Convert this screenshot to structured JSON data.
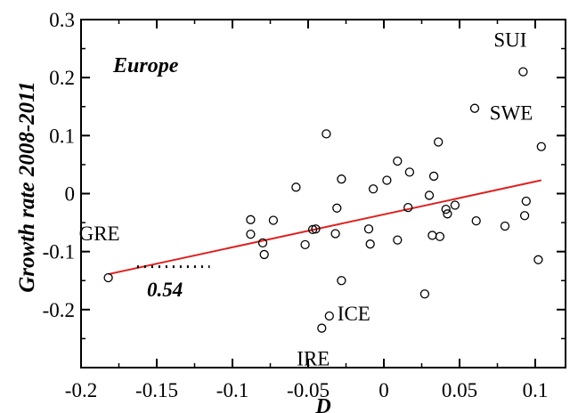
{
  "chart_data": {
    "type": "scatter",
    "title": "Europe",
    "xlabel": "D",
    "ylabel": "Growth rate 2008-2011",
    "xlim": [
      -0.2,
      0.12
    ],
    "ylim": [
      -0.3,
      0.3
    ],
    "x_ticks": [
      -0.2,
      -0.15,
      -0.1,
      -0.05,
      0,
      0.05,
      0.1
    ],
    "x_tick_labels": [
      "-0.2",
      "-0.15",
      "-0.1",
      "-0.05",
      "0",
      "0.05",
      "0.1"
    ],
    "y_ticks": [
      -0.2,
      -0.1,
      0,
      0.1,
      0.2,
      0.3
    ],
    "y_tick_labels": [
      "-0.2",
      "-0.1",
      "0",
      "0.1",
      "0.2",
      "0.3"
    ],
    "grid": false,
    "points": [
      {
        "x": -0.182,
        "y": -0.145
      },
      {
        "x": -0.088,
        "y": -0.045
      },
      {
        "x": -0.088,
        "y": -0.07
      },
      {
        "x": -0.08,
        "y": -0.085
      },
      {
        "x": -0.079,
        "y": -0.105
      },
      {
        "x": -0.073,
        "y": -0.046
      },
      {
        "x": -0.058,
        "y": 0.011
      },
      {
        "x": -0.052,
        "y": -0.088
      },
      {
        "x": -0.047,
        "y": -0.062
      },
      {
        "x": -0.045,
        "y": -0.061
      },
      {
        "x": -0.041,
        "y": -0.232
      },
      {
        "x": -0.038,
        "y": 0.103
      },
      {
        "x": -0.036,
        "y": -0.211
      },
      {
        "x": -0.032,
        "y": -0.069
      },
      {
        "x": -0.031,
        "y": -0.025
      },
      {
        "x": -0.028,
        "y": 0.025
      },
      {
        "x": -0.028,
        "y": -0.15
      },
      {
        "x": -0.01,
        "y": -0.061
      },
      {
        "x": -0.009,
        "y": -0.087
      },
      {
        "x": -0.007,
        "y": 0.008
      },
      {
        "x": 0.002,
        "y": 0.023
      },
      {
        "x": 0.009,
        "y": 0.056
      },
      {
        "x": 0.009,
        "y": -0.08
      },
      {
        "x": 0.016,
        "y": -0.024
      },
      {
        "x": 0.017,
        "y": 0.037
      },
      {
        "x": 0.027,
        "y": -0.173
      },
      {
        "x": 0.03,
        "y": -0.003
      },
      {
        "x": 0.032,
        "y": -0.072
      },
      {
        "x": 0.033,
        "y": 0.03
      },
      {
        "x": 0.036,
        "y": 0.089
      },
      {
        "x": 0.037,
        "y": -0.074
      },
      {
        "x": 0.041,
        "y": -0.027
      },
      {
        "x": 0.042,
        "y": -0.035
      },
      {
        "x": 0.047,
        "y": -0.02
      },
      {
        "x": 0.06,
        "y": 0.147
      },
      {
        "x": 0.061,
        "y": -0.047
      },
      {
        "x": 0.08,
        "y": -0.056
      },
      {
        "x": 0.092,
        "y": 0.21
      },
      {
        "x": 0.093,
        "y": -0.038
      },
      {
        "x": 0.094,
        "y": -0.013
      },
      {
        "x": 0.102,
        "y": -0.114
      },
      {
        "x": 0.104,
        "y": 0.081
      }
    ],
    "fit_line": {
      "x": [
        -0.182,
        0.104
      ],
      "y": [
        -0.139,
        0.023
      ],
      "color": "#dd2222"
    },
    "point_labels": [
      {
        "text": "GRE",
        "x": -0.182,
        "y": -0.145
      },
      {
        "text": "ICE",
        "x": -0.036,
        "y": -0.211
      },
      {
        "text": "IRE",
        "x": -0.041,
        "y": -0.232
      },
      {
        "text": "SUI",
        "x": 0.092,
        "y": 0.21
      },
      {
        "text": "SWE",
        "x": 0.104,
        "y": 0.081
      }
    ],
    "annotation": {
      "text": "0.54",
      "segment_x": [
        -0.163,
        -0.115
      ],
      "segment_y": [
        -0.126,
        -0.126
      ]
    }
  }
}
